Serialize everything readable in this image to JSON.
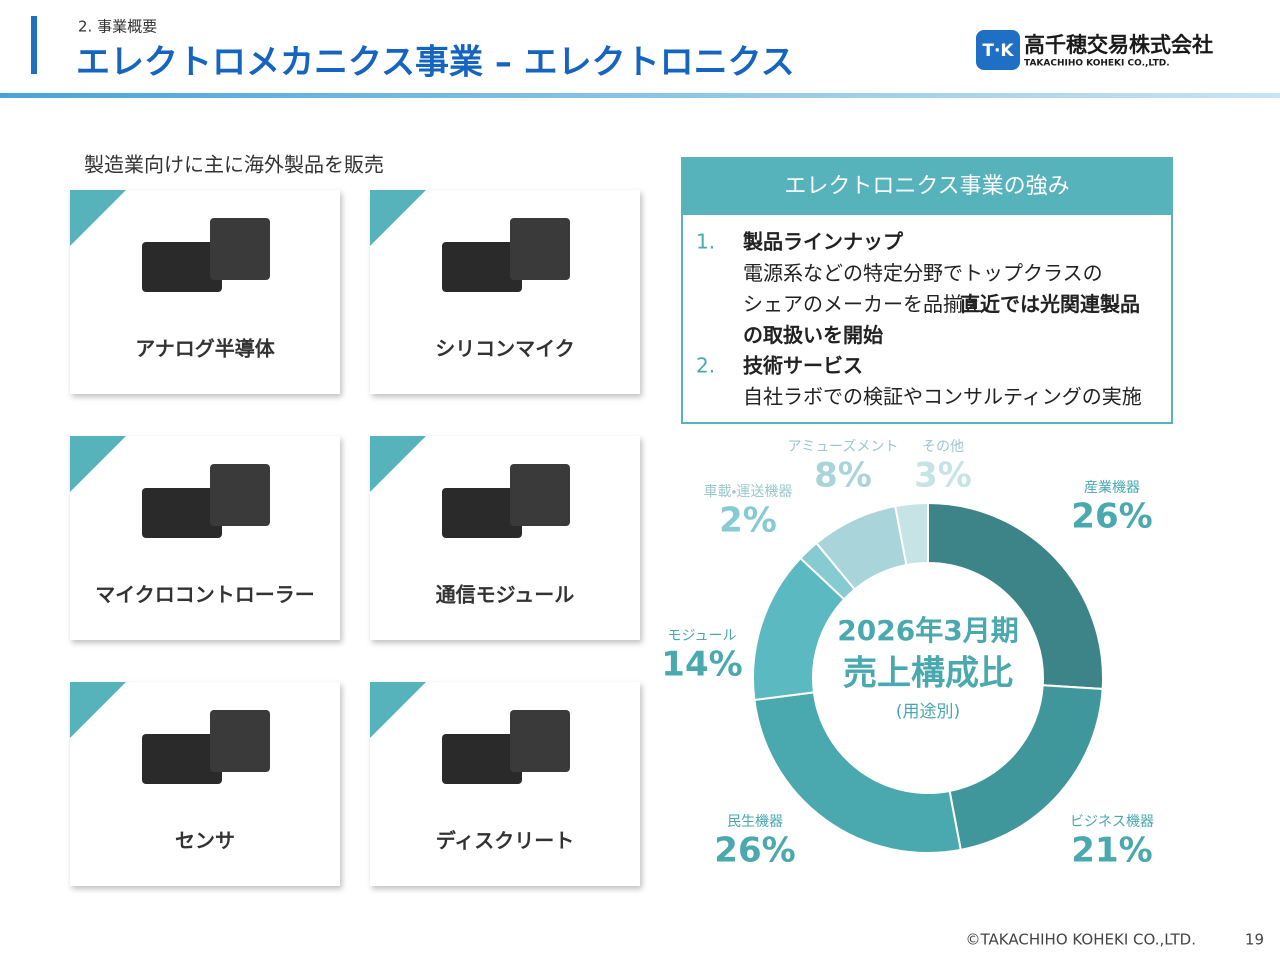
{
  "header": {
    "section": "2. 事業概要",
    "title": "エレクトロメカニクス事業 – エレクトロニクス",
    "logo_mark": "T·K",
    "company": "高千穂交易株式会社",
    "company_en": "TAKACHIHO KOHEKI CO.,LTD."
  },
  "products": {
    "lead": "製造業向けに主に海外製品を販売",
    "items": [
      "アナログ半導体",
      "シリコンマイク",
      "マイクロコントローラー",
      "通信モジュール",
      "センサ",
      "ディスクリート"
    ]
  },
  "strengths": {
    "title": "エレクトロニクス事業の強み",
    "items": [
      {
        "number": "1.",
        "heading": "製品ラインナップ",
        "text": "電源系などの特定分野でトップクラスのシェアのメーカーを品揃え、",
        "bold": "直近では光関連製品の取扱いを開始"
      },
      {
        "number": "2.",
        "heading": "技術サービス",
        "text": "自社ラボでの検証やコンサルティングの実施"
      }
    ]
  },
  "chart_data": {
    "type": "pie",
    "donut": true,
    "annotations": [
      "2026年3月期",
      "売上構成比",
      "(用途別)"
    ],
    "categories": [
      "産業機器",
      "ビジネス機器",
      "民生機器",
      "モジュール",
      "車載・運送機器",
      "アミューズメント",
      "その他"
    ],
    "values": [
      26,
      21,
      26,
      14,
      2,
      8,
      3
    ],
    "value_labels": [
      "26%",
      "21%",
      "26%",
      "14%",
      "2%",
      "8%",
      "3%"
    ],
    "colors": [
      "#3c8488",
      "#3f979c",
      "#4aa8af",
      "#5bb9c1",
      "#86cbd1",
      "#a9d5da",
      "#c6e3e6"
    ]
  },
  "footer": {
    "copyright": "©TAKACHIHO KOHEKI CO.,LTD.",
    "page": "19"
  }
}
